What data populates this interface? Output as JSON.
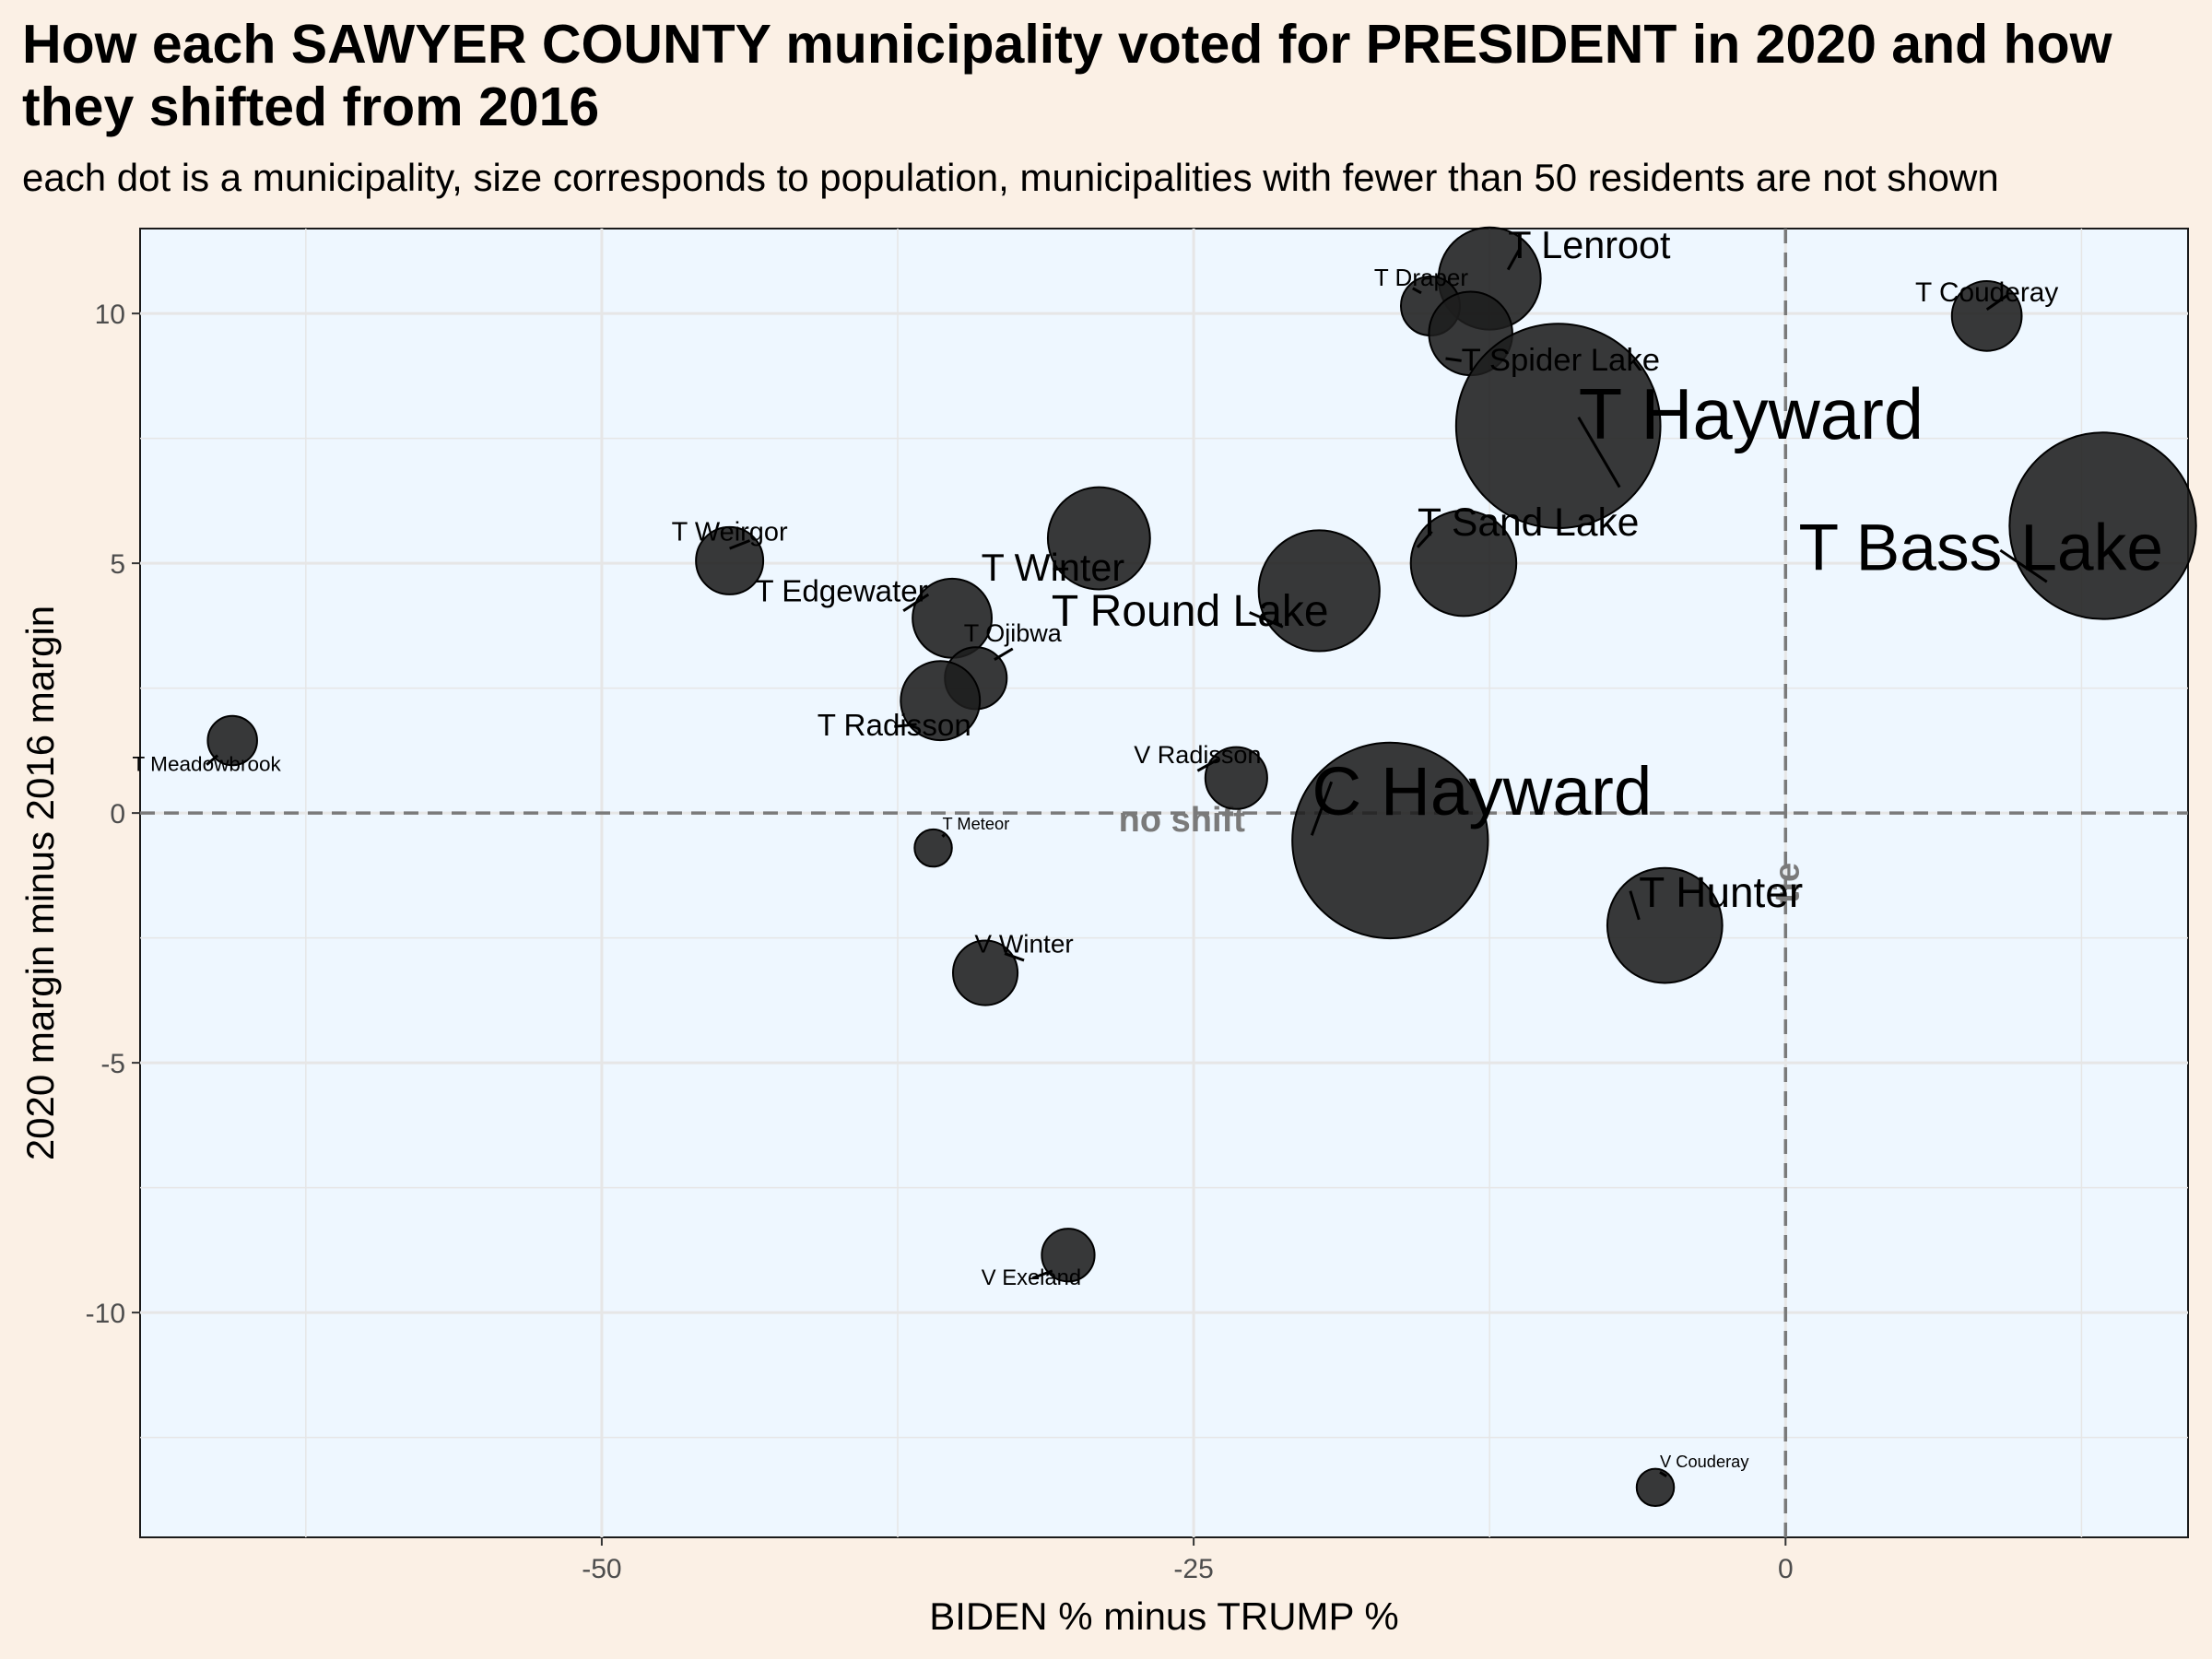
{
  "chart_data": {
    "type": "scatter",
    "title": "How each SAWYER COUNTY municipality voted for PRESIDENT in 2020 and how they shifted from 2016",
    "subtitle": "each dot is a municipality, size corresponds to population, municipalities with fewer than 50 residents are not shown",
    "xlabel": "BIDEN % minus TRUMP %",
    "ylabel": "2020 margin minus 2016 margin",
    "xlim": [
      -69.5,
      17
    ],
    "ylim": [
      -14.5,
      11.7
    ],
    "x_ticks": [
      -50,
      -25,
      0
    ],
    "y_ticks": [
      -10,
      -5,
      0,
      5,
      10
    ],
    "x_tick_labels": [
      "-50",
      "-25",
      "0"
    ],
    "y_tick_labels": [
      "-10",
      "-5",
      "0",
      "5",
      "10"
    ],
    "grid": true,
    "reference_lines": [
      {
        "orientation": "horizontal",
        "value": 0,
        "label": "no shift"
      },
      {
        "orientation": "vertical",
        "value": 0,
        "label": "tie"
      }
    ],
    "colors": {
      "background": "#fbf0e5",
      "panel": "#eef7ff",
      "point": "#1e1e1e",
      "reference_line": "#7a7a7a",
      "grid": "#e6e6e6"
    },
    "points": [
      {
        "name": "T Lenroot",
        "x": -12.5,
        "y": 10.7,
        "size": 300
      },
      {
        "name": "T Draper",
        "x": -15.0,
        "y": 10.15,
        "size": 100
      },
      {
        "name": "T Spider Lake",
        "x": -13.3,
        "y": 9.6,
        "size": 200
      },
      {
        "name": "T Couderay",
        "x": 8.5,
        "y": 9.95,
        "size": 140
      },
      {
        "name": "T Hayward",
        "x": -9.6,
        "y": 7.75,
        "size": 1200
      },
      {
        "name": "T Weirgor",
        "x": -44.6,
        "y": 5.05,
        "size": 130
      },
      {
        "name": "T Winter",
        "x": -29.0,
        "y": 5.5,
        "size": 300
      },
      {
        "name": "T Sand Lake",
        "x": -13.6,
        "y": 5.0,
        "size": 320
      },
      {
        "name": "T Bass Lake",
        "x": 13.4,
        "y": 5.75,
        "size": 1000
      },
      {
        "name": "T Edgewater",
        "x": -35.2,
        "y": 3.9,
        "size": 180
      },
      {
        "name": "T Round Lake",
        "x": -19.7,
        "y": 4.45,
        "size": 420
      },
      {
        "name": "T Ojibwa",
        "x": -34.2,
        "y": 2.7,
        "size": 110
      },
      {
        "name": "T Radisson",
        "x": -35.7,
        "y": 2.25,
        "size": 180
      },
      {
        "name": "T Meadowbrook",
        "x": -65.6,
        "y": 1.45,
        "size": 70
      },
      {
        "name": "V Radisson",
        "x": -23.2,
        "y": 0.7,
        "size": 110
      },
      {
        "name": "C Hayward",
        "x": -16.7,
        "y": -0.55,
        "size": 1100
      },
      {
        "name": "T Meteor",
        "x": -36.0,
        "y": -0.7,
        "size": 40
      },
      {
        "name": "T Hunter",
        "x": -5.1,
        "y": -2.25,
        "size": 380
      },
      {
        "name": "V Winter",
        "x": -33.8,
        "y": -3.2,
        "size": 120
      },
      {
        "name": "V Exeland",
        "x": -30.3,
        "y": -8.85,
        "size": 80
      },
      {
        "name": "V Couderay",
        "x": -5.5,
        "y": -13.5,
        "size": 40
      }
    ]
  }
}
